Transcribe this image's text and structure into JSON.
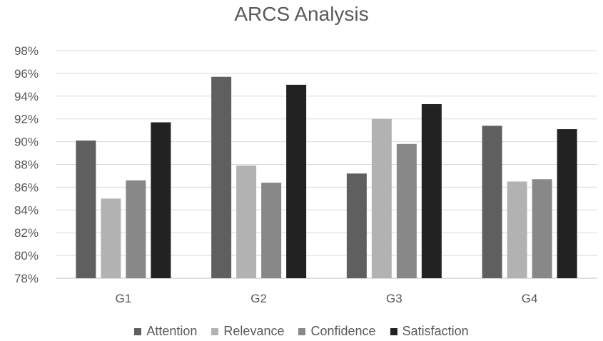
{
  "chart_data": {
    "type": "bar",
    "title": "ARCS Analysis",
    "xlabel": "",
    "ylabel": "",
    "categories": [
      "G1",
      "G2",
      "G3",
      "G4"
    ],
    "ylim": [
      78,
      98
    ],
    "yticks": [
      78,
      80,
      82,
      84,
      86,
      88,
      90,
      92,
      94,
      96,
      98
    ],
    "ytick_suffix": "%",
    "grid": true,
    "legend_position": "bottom",
    "series": [
      {
        "name": "Attention",
        "color": "#5f5f5f",
        "values": [
          90.1,
          95.7,
          87.2,
          91.4
        ]
      },
      {
        "name": "Relevance",
        "color": "#b2b2b2",
        "values": [
          85.0,
          87.9,
          92.0,
          86.5
        ]
      },
      {
        "name": "Confidence",
        "color": "#888888",
        "values": [
          86.6,
          86.4,
          89.8,
          86.7
        ]
      },
      {
        "name": "Satisfaction",
        "color": "#222222",
        "values": [
          91.7,
          95.0,
          93.3,
          91.1
        ]
      }
    ]
  }
}
